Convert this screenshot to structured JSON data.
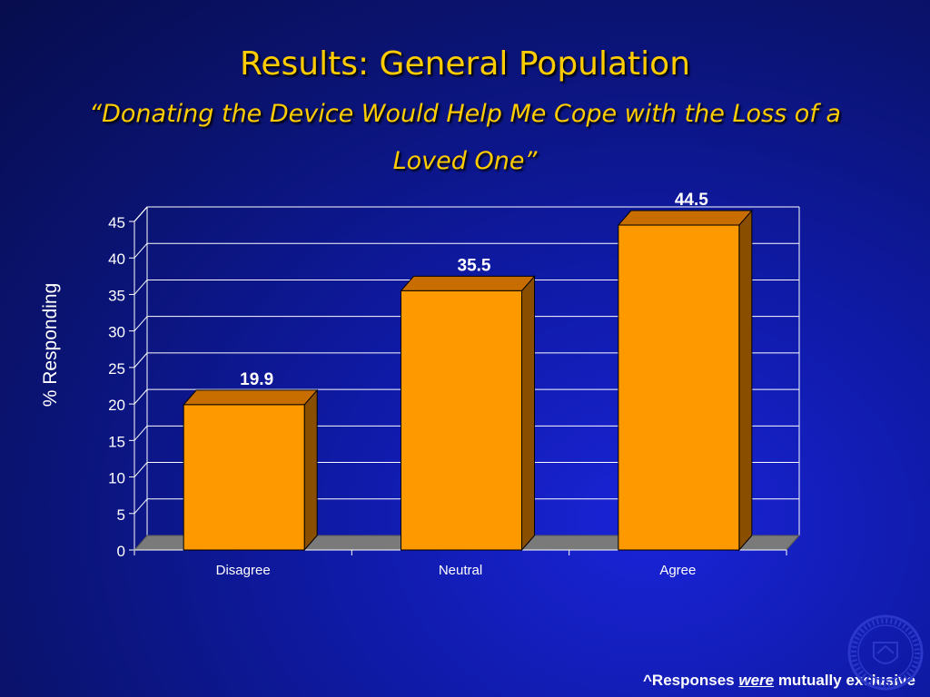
{
  "slide": {
    "title": "Results: General Population",
    "subtitle": "“Donating the Device Would Help Me Cope with the Loss of a Loved One”"
  },
  "footnote": {
    "prefix": "^Responses ",
    "emphasis": "were",
    "suffix": " mutually exclusive"
  },
  "colors": {
    "background": "#0a1370",
    "title": "#ffcc00",
    "bar_front": "#ff9900",
    "bar_top": "#c86e00",
    "bar_side": "#8a4e00",
    "floor": "#7a7a7a",
    "gridline": "#ffffff"
  },
  "chart_data": {
    "type": "bar",
    "categories": [
      "Disagree",
      "Neutral",
      "Agree"
    ],
    "values": [
      19.9,
      35.5,
      44.5
    ],
    "data_labels": [
      "19.9",
      "35.5",
      "44.5"
    ],
    "title": "",
    "xlabel": "",
    "ylabel": "% Responding",
    "ylim": [
      0,
      45
    ],
    "yticks": [
      0,
      5,
      10,
      15,
      20,
      25,
      30,
      35,
      40,
      45
    ],
    "grid": true,
    "legend": "none",
    "style": "3d-column"
  }
}
